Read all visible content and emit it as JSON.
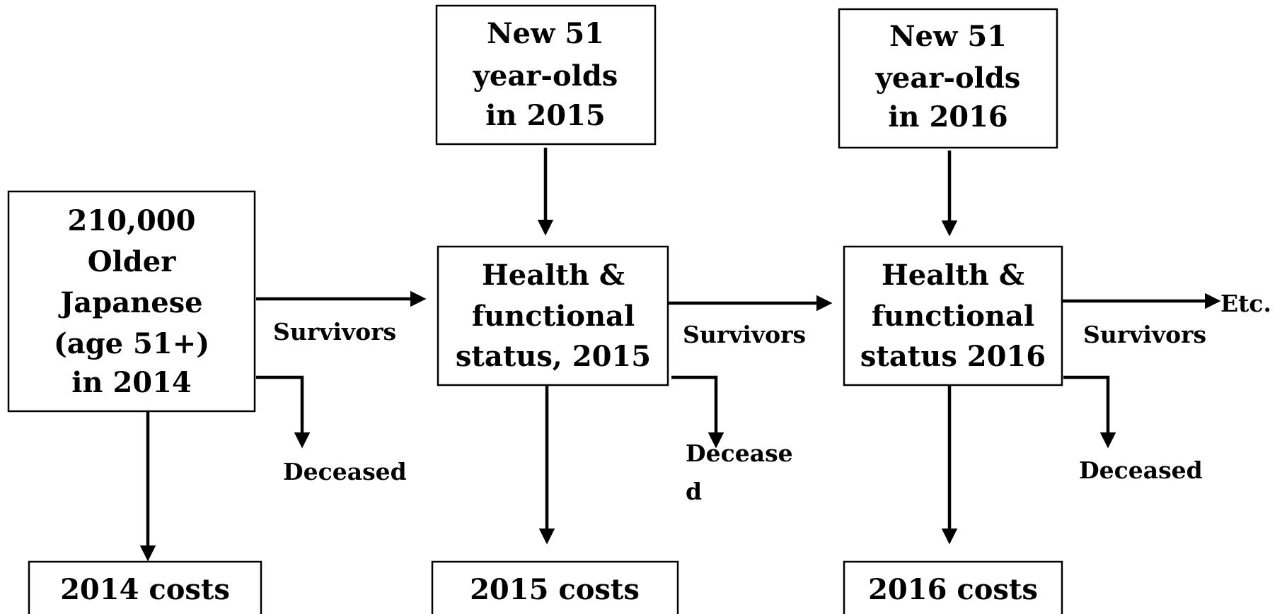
{
  "nodes": [
    {
      "lines": [
        "210,000",
        "Older",
        "Japanese",
        "(age 51+)",
        "in 2014"
      ]
    },
    {
      "lines": [
        "New 51",
        "year-olds",
        "in 2015"
      ]
    },
    {
      "lines": [
        "New 51",
        "year-olds",
        "in 2016"
      ]
    },
    {
      "lines": [
        "Health &",
        "functional",
        "status, 2015"
      ]
    },
    {
      "lines": [
        "Health &",
        "functional",
        "status 2016"
      ]
    },
    {
      "lines": [
        "2014 costs"
      ]
    },
    {
      "lines": [
        "2015 costs"
      ]
    },
    {
      "lines": [
        "2016 costs"
      ]
    }
  ],
  "labels": {
    "survivors_1": "Survivors",
    "deceased_1": "Deceased",
    "survivors_2": "Survivors",
    "deceased_2": [
      "Decease",
      "d"
    ],
    "survivors_3": "Survivors",
    "deceased_3": "Deceased",
    "etc": "Etc."
  }
}
